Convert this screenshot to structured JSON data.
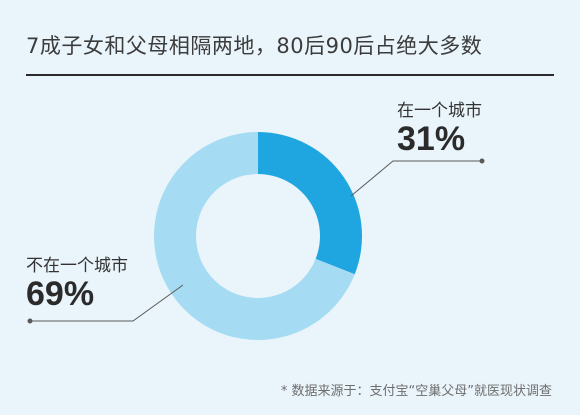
{
  "chart_data": {
    "type": "pie",
    "title": "7成子女和父母相隔两地，80后90后占绝大多数",
    "categories": [
      "在一个城市",
      "不在一个城市"
    ],
    "values": [
      31,
      69
    ],
    "value_labels": [
      "31%",
      "69%"
    ],
    "colors": [
      "#1fa6e0",
      "#a6dcf3"
    ],
    "hole": "donut"
  },
  "source": "* 数据来源于：支付宝“空巢父母”就医现状调查"
}
